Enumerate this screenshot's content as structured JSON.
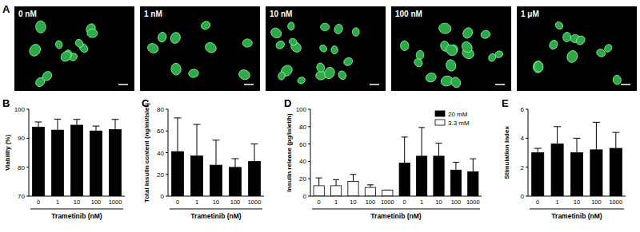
{
  "images": {
    "title": "A",
    "labels": [
      "0 nM",
      "1 nM",
      "10 nM",
      "100 nM",
      "1 μM"
    ]
  },
  "chart_data": [
    {
      "type": "bar",
      "title": "B",
      "y_label": "Viability (%)",
      "x_label": "Trametinib (nM)",
      "categories": [
        "0",
        "1",
        "10",
        "100",
        "1000"
      ],
      "values": [
        93.8,
        92.8,
        94.5,
        92.5,
        93.0
      ],
      "errors": [
        1.8,
        3.8,
        2.0,
        1.7,
        3.5
      ],
      "color": "#000000",
      "ylim": [
        70,
        100
      ],
      "yticks": [
        70,
        80,
        90,
        100
      ]
    },
    {
      "type": "bar",
      "title": "C",
      "y_label": "Total insulin content (ng/ml/islet)",
      "x_label": "Trametinib (nM)",
      "categories": [
        "0",
        "1",
        "10",
        "100",
        "1000"
      ],
      "values": [
        41,
        37,
        28.5,
        26.5,
        32
      ],
      "errors": [
        31,
        29,
        23,
        8,
        16
      ],
      "color": "#000000",
      "ylim": [
        0,
        80
      ],
      "yticks": [
        0,
        20,
        40,
        60,
        80
      ]
    },
    {
      "type": "bar",
      "title": "D",
      "y_label": "Insulin release (pg/islet/h)",
      "x_label": "Trametinib (nM)",
      "categories": [
        "0",
        "1",
        "10",
        "100",
        "1000",
        "0",
        "1",
        "10",
        "100",
        "1000"
      ],
      "series": [
        {
          "name": "20 mM",
          "color": "#000000",
          "values": [
            null,
            null,
            null,
            null,
            null,
            38,
            46,
            46,
            30,
            28
          ],
          "errors": [
            null,
            null,
            null,
            null,
            null,
            30,
            33,
            15,
            9,
            15
          ]
        },
        {
          "name": "3.3 mM",
          "color": "#ffffff",
          "values": [
            12,
            12,
            17,
            10,
            7,
            null,
            null,
            null,
            null,
            null
          ],
          "errors": [
            9,
            7,
            8,
            3,
            0,
            null,
            null,
            null,
            null,
            null
          ]
        }
      ],
      "legend": "upper-right",
      "ylim": [
        0,
        100
      ],
      "yticks": [
        0,
        20,
        40,
        60,
        80,
        100
      ]
    },
    {
      "type": "bar",
      "title": "E",
      "y_label": "Stimulation index",
      "x_label": "Trametinib (nM)",
      "categories": [
        "0",
        "1",
        "10",
        "100",
        "1000"
      ],
      "values": [
        3.0,
        3.6,
        3.0,
        3.2,
        3.3
      ],
      "errors": [
        0.3,
        1.2,
        1.0,
        1.9,
        1.1
      ],
      "color": "#000000",
      "ylim": [
        0,
        6
      ],
      "yticks": [
        0,
        2,
        4,
        6
      ]
    }
  ]
}
